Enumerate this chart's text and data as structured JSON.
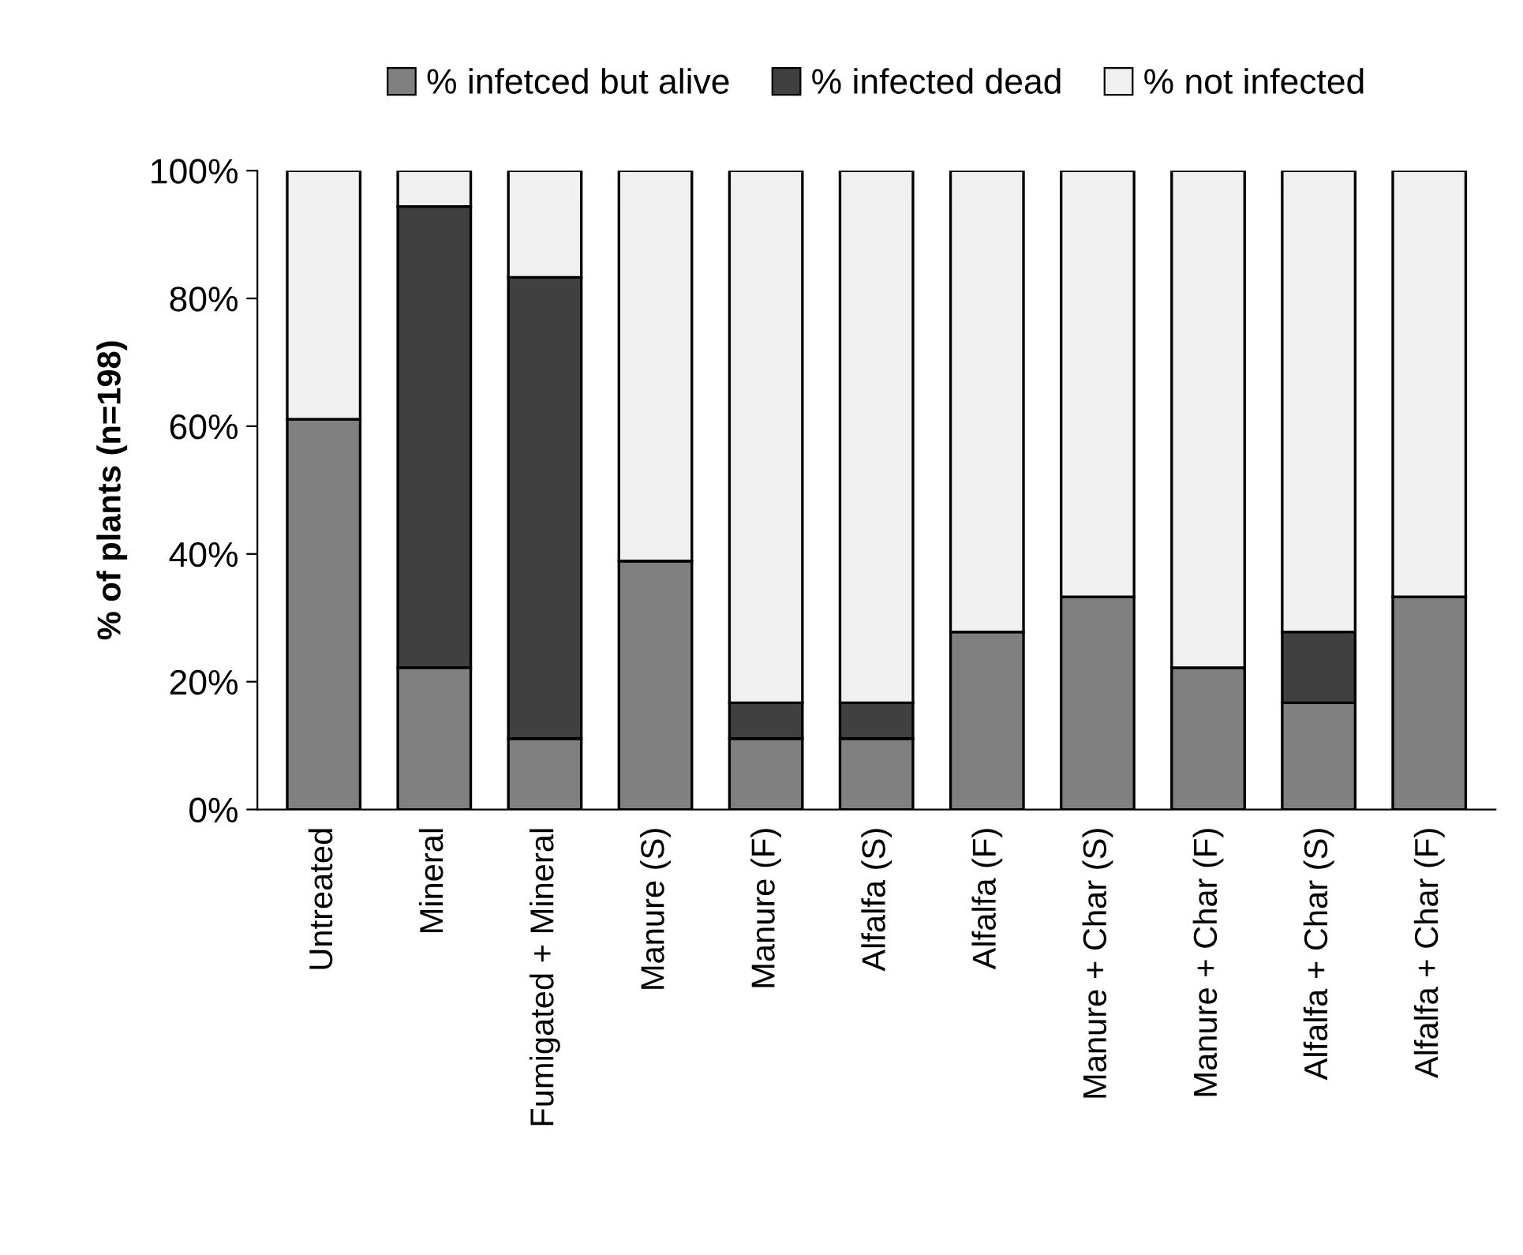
{
  "chart_data": {
    "type": "bar",
    "stacked": true,
    "ylabel": "% of plants (n=198)",
    "categories": [
      "Untreated",
      "Mineral",
      "Fumigated + Mineral",
      "Manure (S)",
      "Manure (F)",
      "Alfalfa (S)",
      "Alfalfa (F)",
      "Manure + Char (S)",
      "Manure + Char (F)",
      "Alfalfa + Char (S)",
      "Alfalfa + Char (F)"
    ],
    "series": [
      {
        "name": "% infetced but alive",
        "color": "#808080",
        "values": [
          61.1,
          22.2,
          11.1,
          38.9,
          11.1,
          11.1,
          27.8,
          33.3,
          22.2,
          16.7,
          33.3
        ]
      },
      {
        "name": "% infected dead",
        "color": "#404040",
        "values": [
          0,
          72.2,
          72.2,
          0,
          5.6,
          5.6,
          0,
          0,
          0,
          11.1,
          0
        ]
      },
      {
        "name": "% not infected",
        "color": "#f0f0f0",
        "values": [
          38.9,
          5.6,
          16.7,
          61.1,
          83.3,
          83.3,
          72.2,
          66.7,
          77.8,
          72.2,
          66.7
        ]
      }
    ],
    "ylim": [
      0,
      100
    ],
    "yticks": [
      {
        "value": 0,
        "label": "0%"
      },
      {
        "value": 20,
        "label": "20%"
      },
      {
        "value": 40,
        "label": "40%"
      },
      {
        "value": 60,
        "label": "60%"
      },
      {
        "value": 80,
        "label": "80%"
      },
      {
        "value": 100,
        "label": "100%"
      }
    ],
    "legend": "top",
    "grid": false
  }
}
